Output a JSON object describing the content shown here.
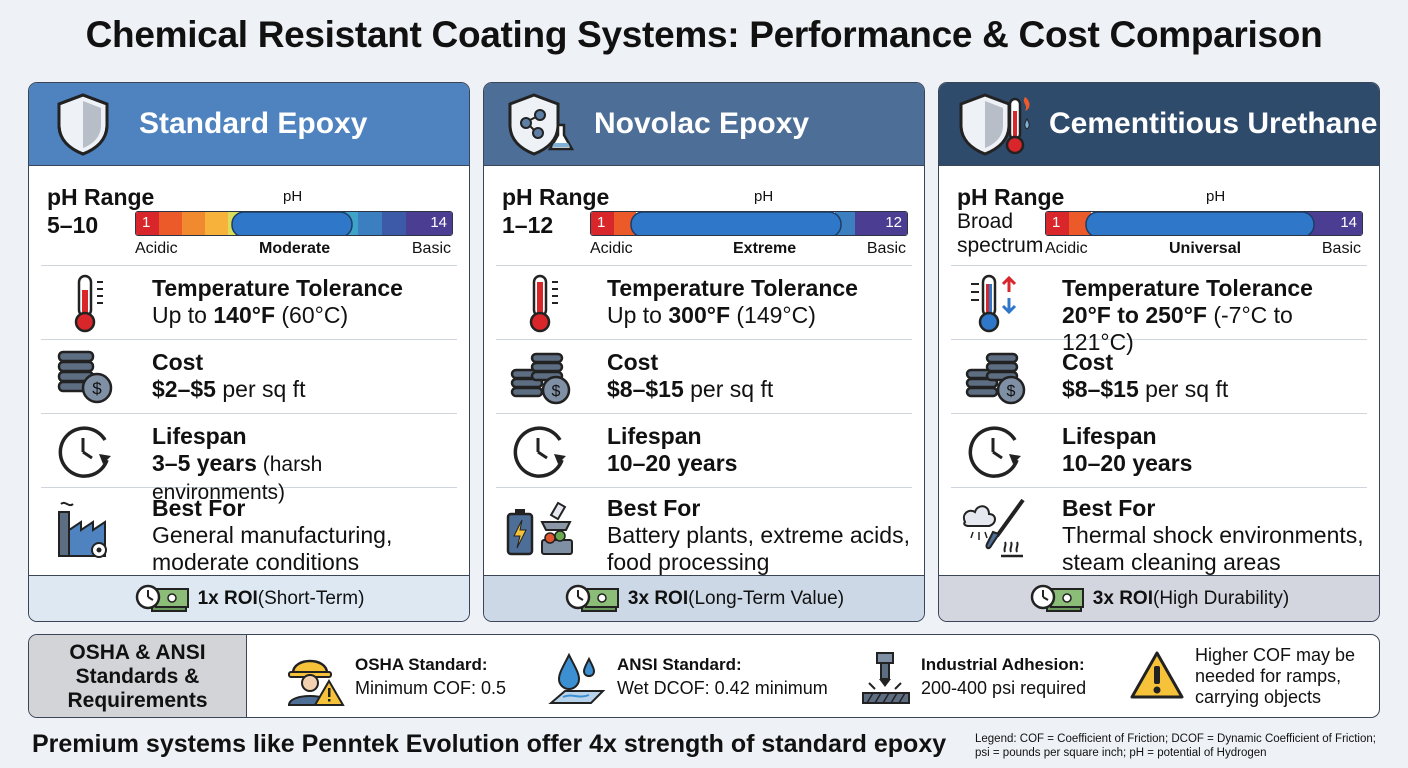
{
  "title": "Chemical Resistant Coating Systems: Performance & Cost Comparison",
  "colors": {
    "card1_header": "#4e83bf",
    "card2_header": "#4d6e96",
    "card3_header": "#2f4b6c",
    "card1_footer": "#dde8f3",
    "card2_footer": "#ccd8e6",
    "card3_footer": "#d3d6df"
  },
  "cards": [
    {
      "name": "Standard Epoxy",
      "icon": "shield-icon",
      "ph_label": "pH Range",
      "ph_value": "5–10",
      "ph_caption": "pH",
      "ph_min": "1",
      "ph_max": "14",
      "ph_low_label": "Acidic",
      "ph_mid_label": "Moderate",
      "ph_high_label": "Basic",
      "temp_head": "Temperature Tolerance",
      "temp_pre": "Up to ",
      "temp_bold": "140°F",
      "temp_post": " (60°C)",
      "cost_head": "Cost",
      "cost_bold": "$2–$5",
      "cost_post": " per sq ft",
      "life_head": "Lifespan",
      "life_bold": "3–5 years",
      "life_post": " (harsh environments)",
      "best_head": "Best For",
      "best_line1": "General manufacturing,",
      "best_line2": "moderate conditions",
      "roi_bold": "1x ROI",
      "roi_post": " (Short-Term)"
    },
    {
      "name": "Novolac Epoxy",
      "icon": "chemical-shield-icon",
      "ph_label": "pH Range",
      "ph_value": "1–12",
      "ph_caption": "pH",
      "ph_min": "1",
      "ph_max": "12",
      "ph_low_label": "Acidic",
      "ph_mid_label": "Extreme",
      "ph_high_label": "Basic",
      "temp_head": "Temperature Tolerance",
      "temp_pre": "Up to ",
      "temp_bold": "300°F",
      "temp_post": " (149°C)",
      "cost_head": "Cost",
      "cost_bold": "$8–$15",
      "cost_post": " per sq ft",
      "life_head": "Lifespan",
      "life_bold": "10–20 years",
      "life_post": "",
      "best_head": "Best For",
      "best_line1": "Battery plants, extreme acids,",
      "best_line2": "food processing",
      "roi_bold": "3x ROI",
      "roi_post": " (Long-Term Value)"
    },
    {
      "name": "Cementitious Urethane",
      "icon": "thermal-shield-icon",
      "ph_label": "pH Range",
      "ph_value": "Broad spectrum",
      "ph_caption": "pH",
      "ph_min": "1",
      "ph_max": "14",
      "ph_low_label": "Acidic",
      "ph_mid_label": "Universal",
      "ph_high_label": "Basic",
      "temp_head": "Temperature Tolerance",
      "temp_pre": "",
      "temp_bold": "20°F to 250°F",
      "temp_post": " (-7°C to 121°C)",
      "cost_head": "Cost",
      "cost_bold": "$8–$15",
      "cost_post": " per sq ft",
      "life_head": "Lifespan",
      "life_bold": "10–20 years",
      "life_post": "",
      "best_head": "Best For",
      "best_line1": "Thermal shock environments,",
      "best_line2": "steam cleaning areas",
      "roi_bold": "3x ROI",
      "roi_post": " (High Durability)"
    }
  ],
  "standards": {
    "title_line1": "OSHA & ANSI",
    "title_line2": "Standards &",
    "title_line3": "Requirements",
    "items": [
      {
        "head": "OSHA Standard:",
        "sub": "Minimum COF: 0.5",
        "icon": "hardhat-worker-icon"
      },
      {
        "head": "ANSI Standard:",
        "sub": "Wet DCOF: 0.42 minimum",
        "icon": "water-drop-icon"
      },
      {
        "head": "Industrial Adhesion:",
        "sub": "200-400 psi required",
        "icon": "press-icon"
      }
    ],
    "note_line1": "Higher COF may be",
    "note_line2": "needed for ramps,",
    "note_line3": "carrying objects",
    "note_icon": "warning-icon"
  },
  "footer": "Premium systems like Penntek Evolution offer 4x strength of standard epoxy",
  "legend_line1": "Legend: COF = Coefficient of Friction; DCOF = Dynamic Coefficient of Friction;",
  "legend_line2": "psi = pounds per square inch; pH = potential of Hydrogen"
}
